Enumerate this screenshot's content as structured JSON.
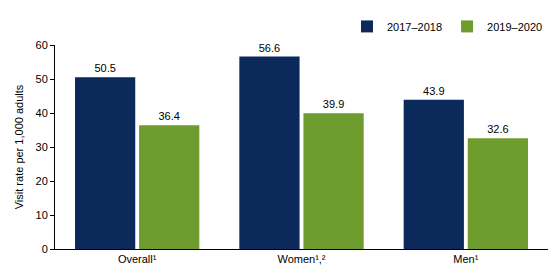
{
  "chart_data": {
    "type": "bar",
    "y_label": "Visit rate per 1,000 adults",
    "categories": [
      "Overall¹",
      "Women¹,²",
      "Men¹"
    ],
    "series": [
      {
        "name": "2017–2018",
        "color": "#0b2a5b",
        "values": [
          50.5,
          56.6,
          43.9
        ]
      },
      {
        "name": "2019–2020",
        "color": "#6e9c2e",
        "values": [
          36.4,
          39.9,
          32.6
        ]
      }
    ],
    "ylim": [
      0,
      60
    ],
    "yticks": [
      0,
      10,
      20,
      30,
      40,
      50,
      60
    ],
    "grid": false,
    "legend": "top right",
    "data_labels": true
  }
}
